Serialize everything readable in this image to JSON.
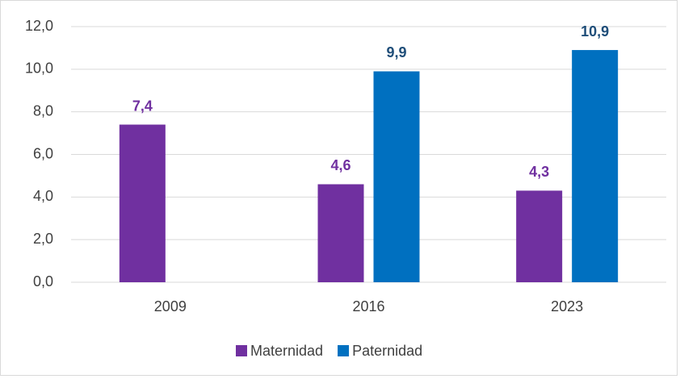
{
  "chart_data": {
    "type": "bar",
    "categories": [
      "2009",
      "2016",
      "2023"
    ],
    "series": [
      {
        "name": "Maternidad",
        "color": "#7030a0",
        "label_color": "#7030a0",
        "values": [
          7.4,
          4.6,
          4.3
        ],
        "value_labels": [
          "7,4",
          "4,6",
          "4,3"
        ]
      },
      {
        "name": "Paternidad",
        "color": "#0070c0",
        "label_color": "#1f4e79",
        "values": [
          null,
          9.9,
          10.9
        ],
        "value_labels": [
          null,
          "9,9",
          "10,9"
        ]
      }
    ],
    "ylim": [
      0,
      12
    ],
    "yticks": [
      {
        "value": 0,
        "label": "0,0"
      },
      {
        "value": 2,
        "label": "2,0"
      },
      {
        "value": 4,
        "label": "4,0"
      },
      {
        "value": 6,
        "label": "6,0"
      },
      {
        "value": 8,
        "label": "8,0"
      },
      {
        "value": 10,
        "label": "10,0"
      },
      {
        "value": 12,
        "label": "12,0"
      }
    ],
    "grid": true,
    "legend": "bottom"
  }
}
